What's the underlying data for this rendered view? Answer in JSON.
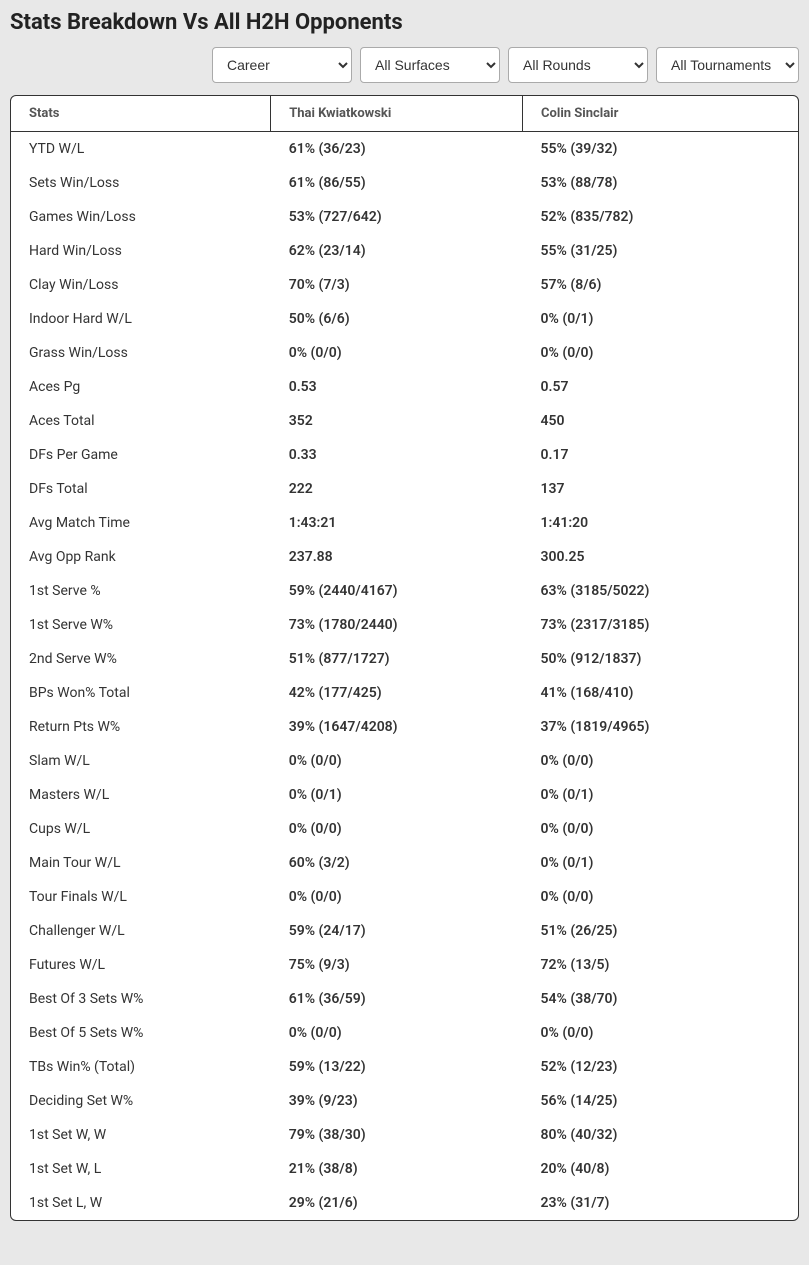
{
  "title": "Stats Breakdown Vs All H2H Opponents",
  "filters": {
    "career": {
      "selected": "Career"
    },
    "surface": {
      "selected": "All Surfaces"
    },
    "round": {
      "selected": "All Rounds"
    },
    "tournament": {
      "selected": "All Tournaments"
    }
  },
  "table": {
    "columns": [
      "Stats",
      "Thai Kwiatkowski",
      "Colin Sinclair"
    ],
    "rows": [
      [
        "YTD W/L",
        "61% (36/23)",
        "55% (39/32)"
      ],
      [
        "Sets Win/Loss",
        "61% (86/55)",
        "53% (88/78)"
      ],
      [
        "Games Win/Loss",
        "53% (727/642)",
        "52% (835/782)"
      ],
      [
        "Hard Win/Loss",
        "62% (23/14)",
        "55% (31/25)"
      ],
      [
        "Clay Win/Loss",
        "70% (7/3)",
        "57% (8/6)"
      ],
      [
        "Indoor Hard W/L",
        "50% (6/6)",
        "0% (0/1)"
      ],
      [
        "Grass Win/Loss",
        "0% (0/0)",
        "0% (0/0)"
      ],
      [
        "Aces Pg",
        "0.53",
        "0.57"
      ],
      [
        "Aces Total",
        "352",
        "450"
      ],
      [
        "DFs Per Game",
        "0.33",
        "0.17"
      ],
      [
        "DFs Total",
        "222",
        "137"
      ],
      [
        "Avg Match Time",
        "1:43:21",
        "1:41:20"
      ],
      [
        "Avg Opp Rank",
        "237.88",
        "300.25"
      ],
      [
        "1st Serve %",
        "59% (2440/4167)",
        "63% (3185/5022)"
      ],
      [
        "1st Serve W%",
        "73% (1780/2440)",
        "73% (2317/3185)"
      ],
      [
        "2nd Serve W%",
        "51% (877/1727)",
        "50% (912/1837)"
      ],
      [
        "BPs Won% Total",
        "42% (177/425)",
        "41% (168/410)"
      ],
      [
        "Return Pts W%",
        "39% (1647/4208)",
        "37% (1819/4965)"
      ],
      [
        "Slam W/L",
        "0% (0/0)",
        "0% (0/0)"
      ],
      [
        "Masters W/L",
        "0% (0/1)",
        "0% (0/1)"
      ],
      [
        "Cups W/L",
        "0% (0/0)",
        "0% (0/0)"
      ],
      [
        "Main Tour W/L",
        "60% (3/2)",
        "0% (0/1)"
      ],
      [
        "Tour Finals W/L",
        "0% (0/0)",
        "0% (0/0)"
      ],
      [
        "Challenger W/L",
        "59% (24/17)",
        "51% (26/25)"
      ],
      [
        "Futures W/L",
        "75% (9/3)",
        "72% (13/5)"
      ],
      [
        "Best Of 3 Sets W%",
        "61% (36/59)",
        "54% (38/70)"
      ],
      [
        "Best Of 5 Sets W%",
        "0% (0/0)",
        "0% (0/0)"
      ],
      [
        "TBs Win% (Total)",
        "59% (13/22)",
        "52% (12/23)"
      ],
      [
        "Deciding Set W%",
        "39% (9/23)",
        "56% (14/25)"
      ],
      [
        "1st Set W, W",
        "79% (38/30)",
        "80% (40/32)"
      ],
      [
        "1st Set W, L",
        "21% (38/8)",
        "20% (40/8)"
      ],
      [
        "1st Set L, W",
        "29% (21/6)",
        "23% (31/7)"
      ]
    ]
  }
}
